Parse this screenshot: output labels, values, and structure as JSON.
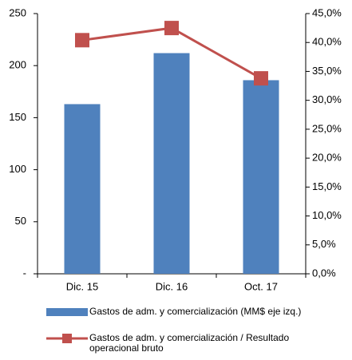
{
  "chart_data": {
    "type": "bar",
    "categories": [
      "Dic. 15",
      "Dic. 16",
      "Oct. 17"
    ],
    "series": [
      {
        "name": "Gastos de adm. y comercialización (MM$ eje izq.)",
        "type": "bar",
        "color": "#4f81bd",
        "values": [
          163,
          212,
          186
        ]
      },
      {
        "name": "Gastos de adm. y comercialización / Resultado operacional bruto",
        "type": "line",
        "axis": "y2",
        "color": "#c0504d",
        "values": [
          40.4,
          42.5,
          33.8
        ]
      }
    ],
    "ylim": [
      0,
      250
    ],
    "yticks": [
      {
        "value": 0,
        "label": "-"
      },
      50,
      100,
      150,
      200,
      250
    ],
    "y2lim": [
      0,
      45
    ],
    "y2ticks": [
      {
        "value": 0,
        "label": "0,0%"
      },
      {
        "value": 5,
        "label": "5,0%"
      },
      {
        "value": 10,
        "label": "10,0%"
      },
      {
        "value": 15,
        "label": "15,0%"
      },
      {
        "value": 20,
        "label": "20,0%"
      },
      {
        "value": 25,
        "label": "25,0%"
      },
      {
        "value": 30,
        "label": "30,0%"
      },
      {
        "value": 35,
        "label": "35,0%"
      },
      {
        "value": 40,
        "label": "40,0%"
      },
      {
        "value": 45,
        "label": "45,0%"
      }
    ],
    "legend": "bottom"
  }
}
